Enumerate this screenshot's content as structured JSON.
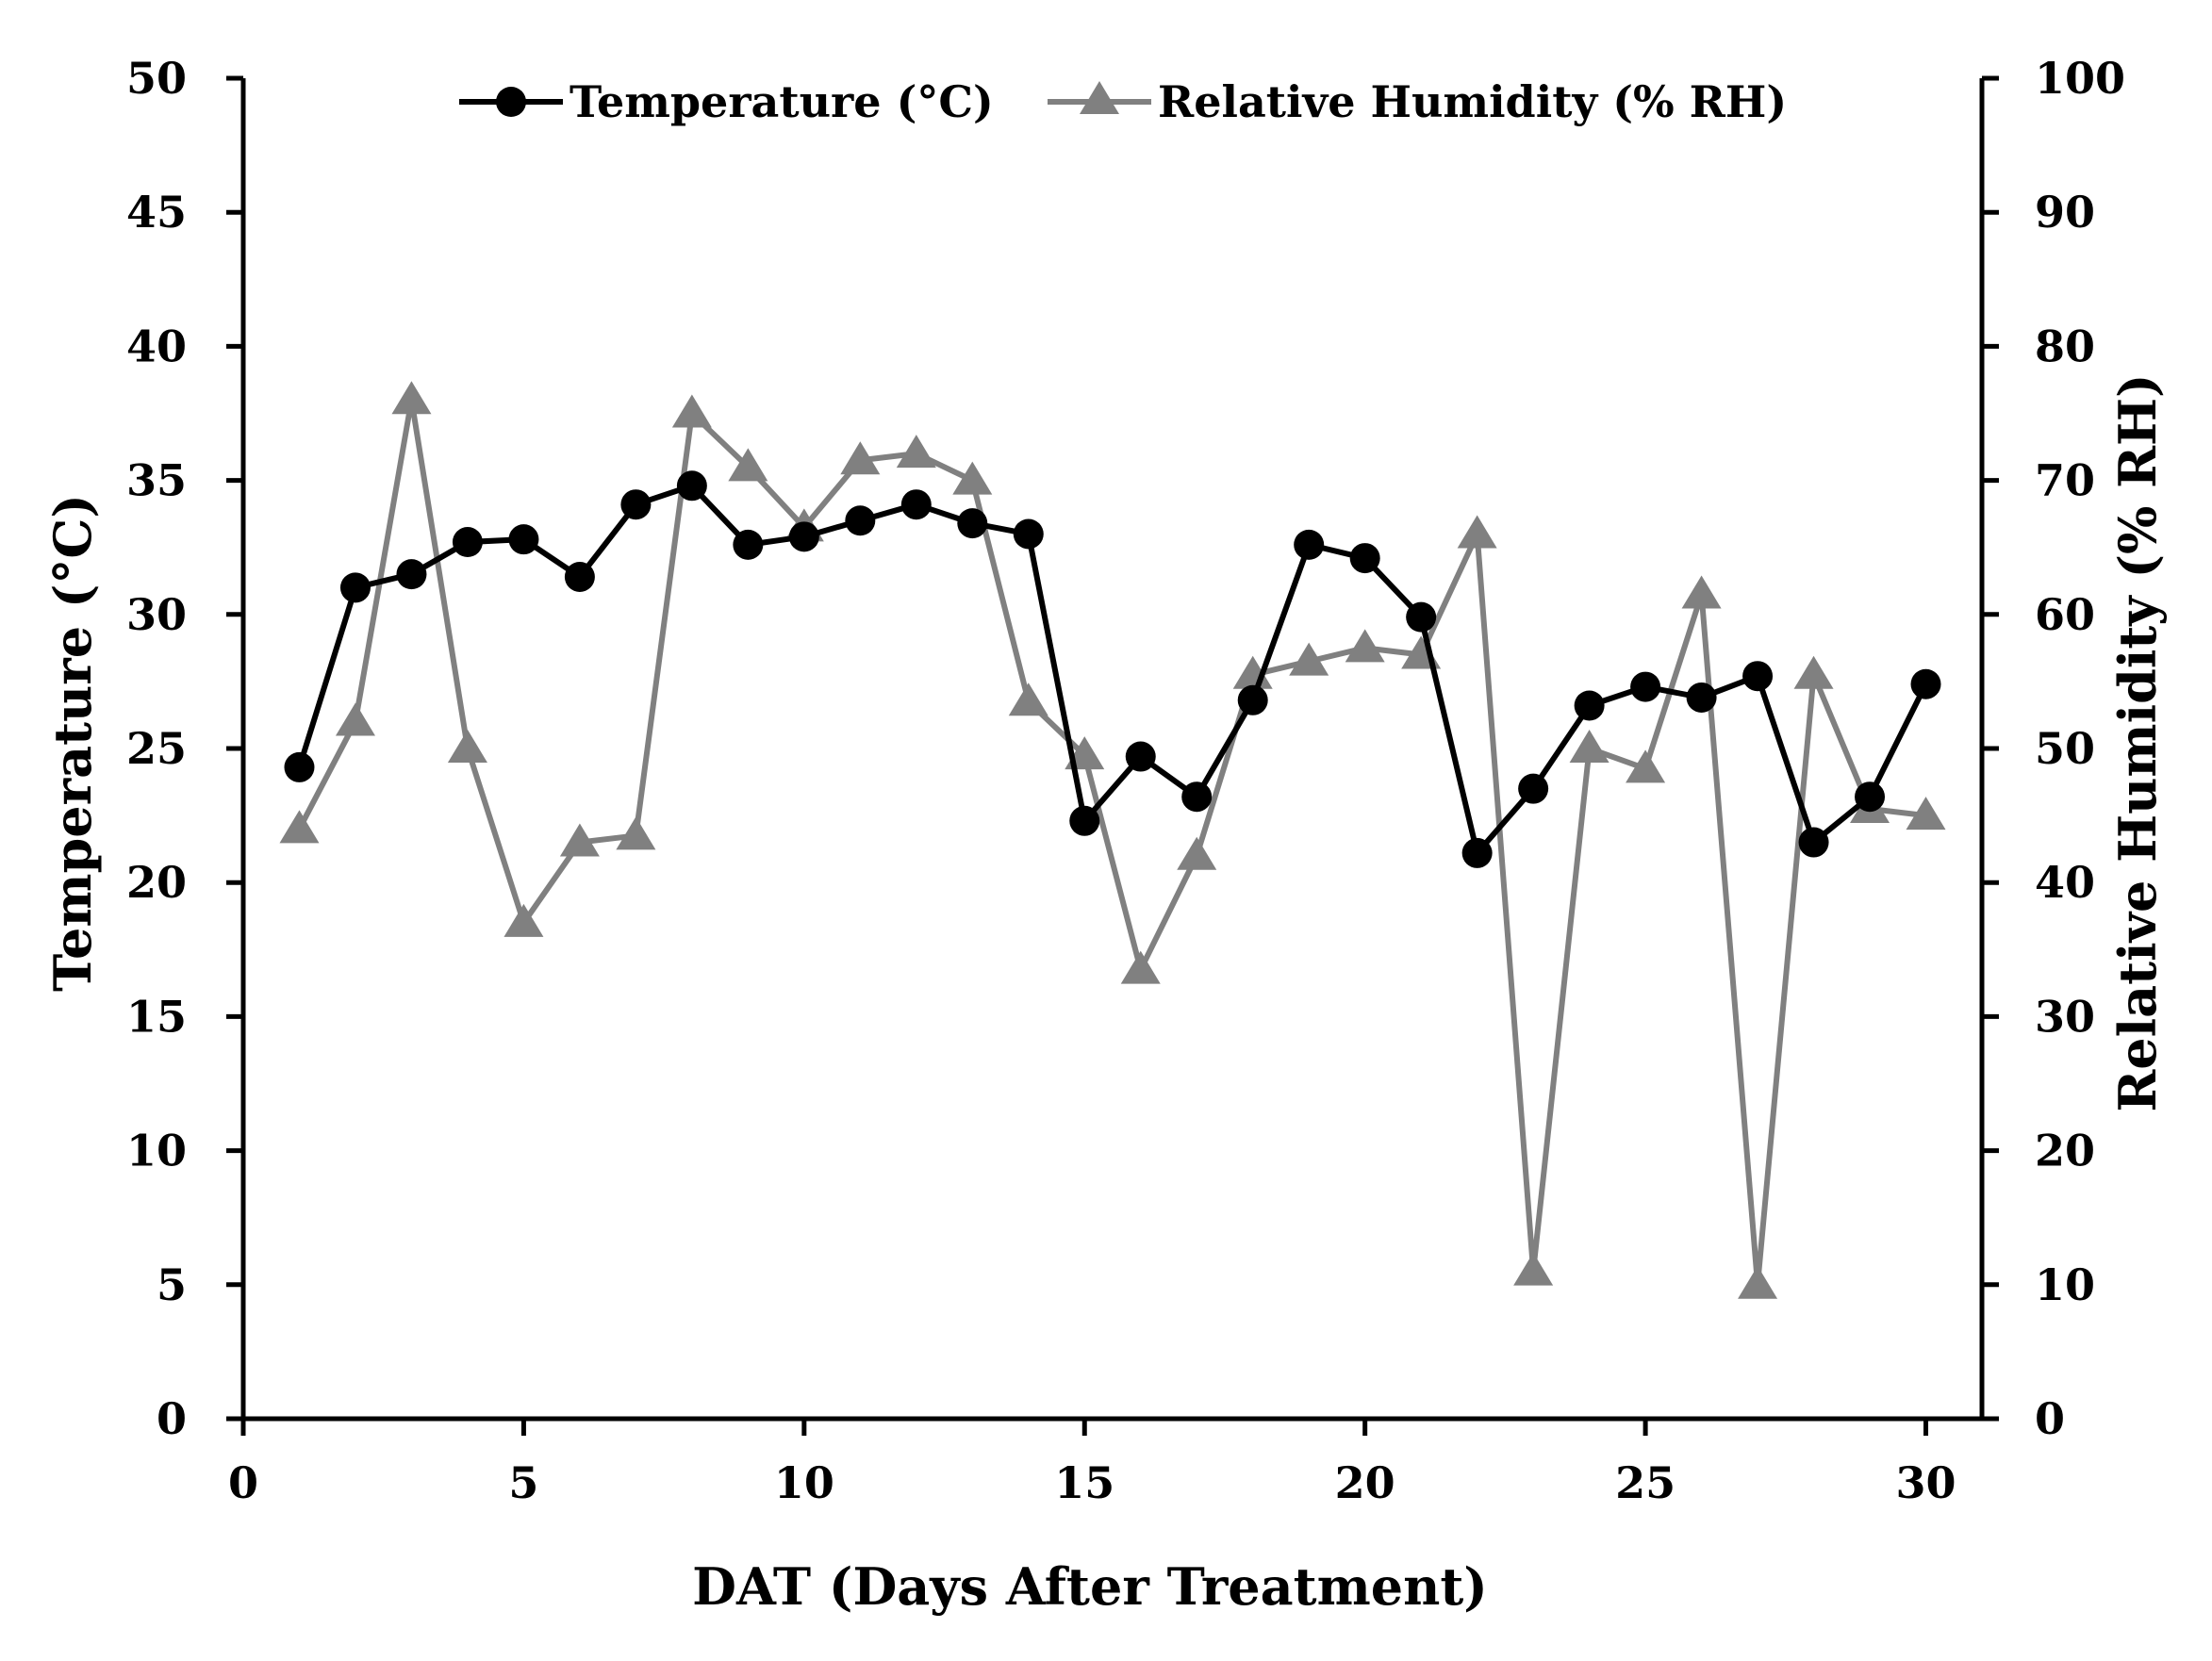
{
  "chart_data": {
    "type": "line",
    "title": "",
    "xlabel": "DAT (Days After Treatment)",
    "ylabel": "Temperature (°C)",
    "y2label": "Relative Humidity (% RH)",
    "xlim": [
      0,
      31
    ],
    "ylim": [
      0,
      50
    ],
    "y2lim": [
      0,
      100
    ],
    "x_ticks": [
      0,
      5,
      10,
      15,
      20,
      25,
      30
    ],
    "y_ticks": [
      0,
      5,
      10,
      15,
      20,
      25,
      30,
      35,
      40,
      45,
      50
    ],
    "y2_ticks": [
      0,
      10,
      20,
      30,
      40,
      50,
      60,
      70,
      80,
      90,
      100
    ],
    "grid": false,
    "legend_position": "top",
    "x": [
      1,
      2,
      3,
      4,
      5,
      6,
      7,
      8,
      9,
      10,
      11,
      12,
      13,
      14,
      15,
      16,
      17,
      18,
      19,
      20,
      21,
      22,
      23,
      24,
      25,
      26,
      27,
      28,
      29,
      30
    ],
    "series": [
      {
        "name": "Temperature (°C)",
        "axis": "left",
        "color": "#000000",
        "marker": "circle",
        "values": [
          24.3,
          31.0,
          31.5,
          32.7,
          32.8,
          31.4,
          34.1,
          34.8,
          32.6,
          32.9,
          33.5,
          34.1,
          33.4,
          33.0,
          22.3,
          24.7,
          23.2,
          26.8,
          32.6,
          32.1,
          29.9,
          21.1,
          23.5,
          26.6,
          27.3,
          26.9,
          27.7,
          21.5,
          23.2,
          27.4
        ]
      },
      {
        "name": "Relative Humidity (% RH)",
        "axis": "right",
        "color": "#808080",
        "marker": "triangle",
        "values": [
          44.0,
          52.0,
          76.0,
          50.0,
          37.0,
          43.0,
          43.5,
          75.0,
          71.0,
          66.5,
          71.5,
          72.0,
          70.0,
          53.5,
          49.5,
          33.5,
          42.0,
          55.5,
          56.5,
          57.5,
          57.0,
          66.0,
          11.0,
          50.0,
          48.5,
          61.5,
          10.0,
          55.5,
          45.5,
          45.0
        ]
      }
    ]
  }
}
